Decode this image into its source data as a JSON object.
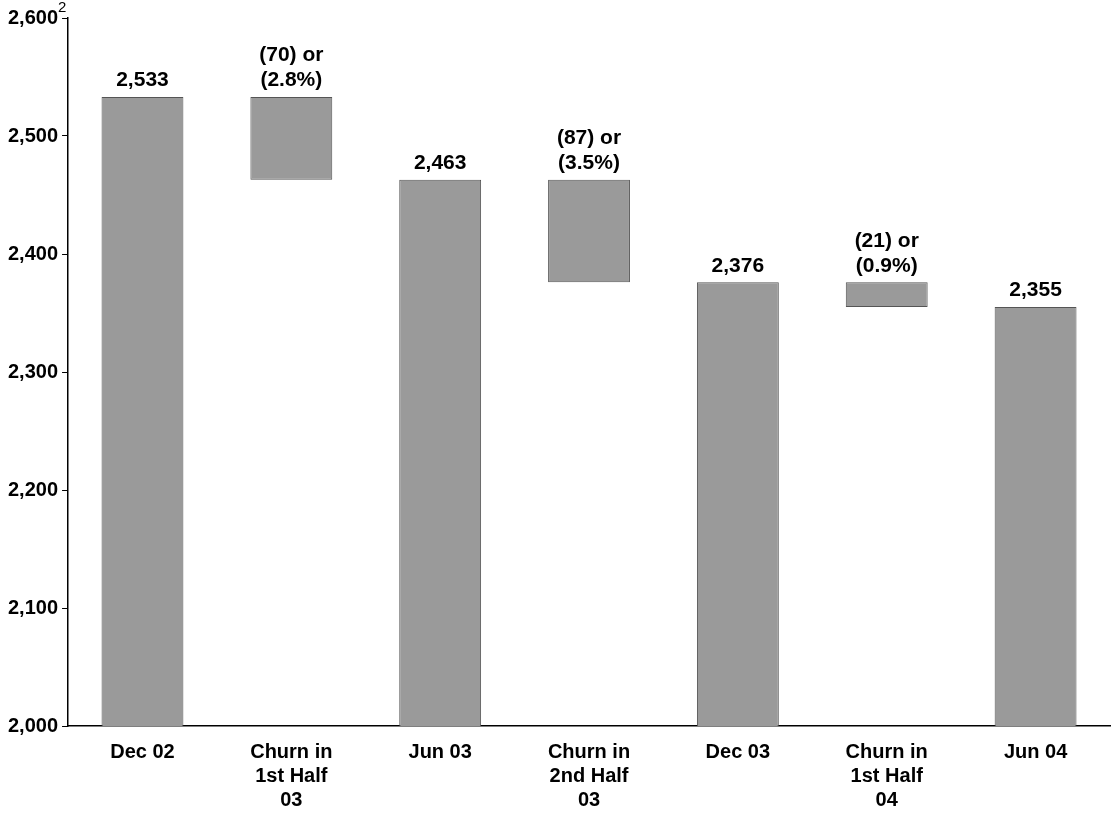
{
  "chart_data": {
    "type": "bar",
    "categories": [
      "Dec 02",
      "Churn in 1st Half 03",
      "Jun 03",
      "Churn in 2nd Half 03",
      "Dec 03",
      "Churn in 1st Half 04",
      "Jun 04"
    ],
    "values": [
      2533,
      70,
      2463,
      87,
      2376,
      21,
      2355
    ],
    "base": [
      null,
      2463,
      null,
      2376,
      null,
      2355,
      null
    ],
    "value_labels": [
      "2,533",
      "(70) or (2.8%)",
      "2,463",
      "(87) or (3.5%)",
      "2,376",
      "(21) or (0.9%)",
      "2,355"
    ],
    "color": "#9a9a9a",
    "ylim": [
      2000,
      2600
    ],
    "yticks": [
      {
        "value": 2000,
        "label": "2,000"
      },
      {
        "value": 2100,
        "label": "2,100"
      },
      {
        "value": 2200,
        "label": "2,200"
      },
      {
        "value": 2300,
        "label": "2,300"
      },
      {
        "value": 2400,
        "label": "2,400"
      },
      {
        "value": 2500,
        "label": "2,500"
      },
      {
        "value": 2600,
        "label": "2,600"
      }
    ],
    "annotations": [
      "2"
    ],
    "grid": false,
    "legend": false
  }
}
